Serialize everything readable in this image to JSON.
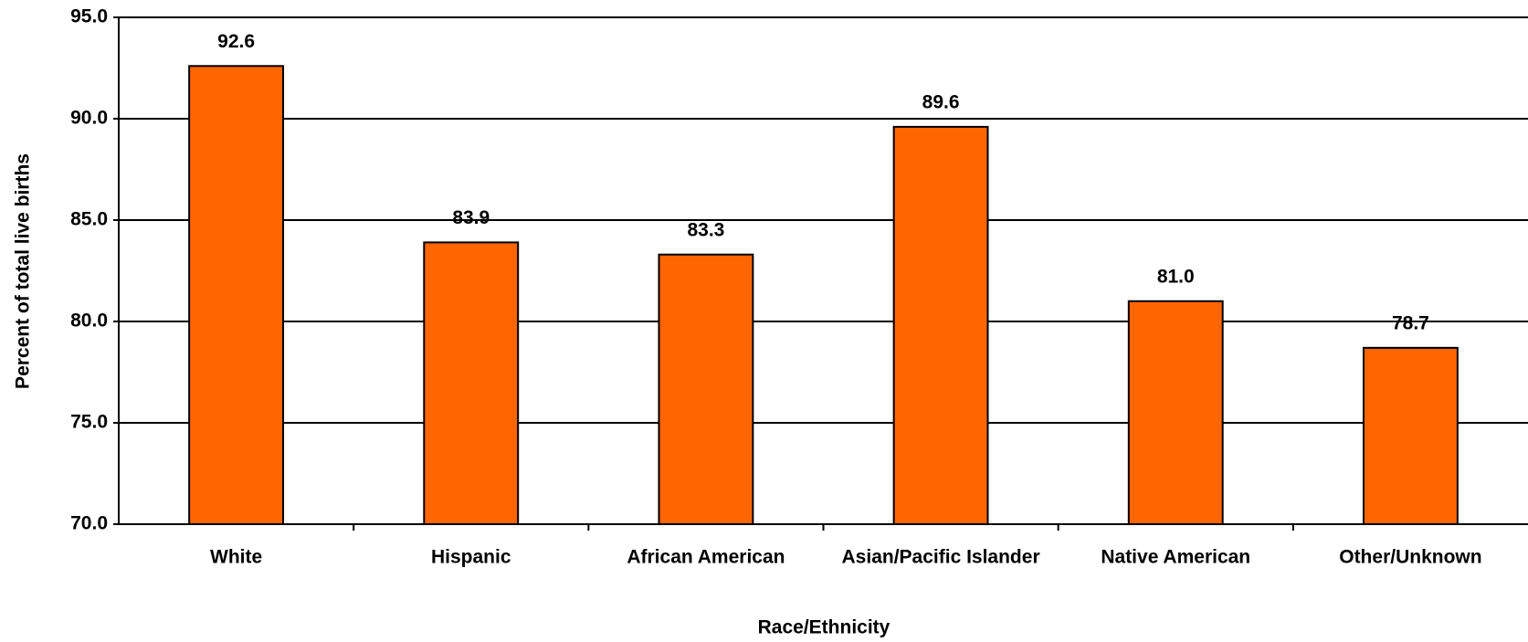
{
  "chart_data": {
    "type": "bar",
    "x_label": "Race/Ethnicity",
    "y_label": "Percent of total live births",
    "categories": [
      "White",
      "Hispanic",
      "African American",
      "Asian/Pacific Islander",
      "Native American",
      "Other/Unknown"
    ],
    "values": [
      92.6,
      83.9,
      83.3,
      89.6,
      81.0,
      78.7
    ],
    "value_labels": [
      "92.6",
      "83.9",
      "83.3",
      "89.6",
      "81.0",
      "78.7"
    ],
    "color": "#ff6600",
    "ylim": [
      70,
      95
    ],
    "yticks": [
      {
        "value": 70,
        "label": "70.0"
      },
      {
        "value": 75,
        "label": "75.0"
      },
      {
        "value": 80,
        "label": "80.0"
      },
      {
        "value": 85,
        "label": "85.0"
      },
      {
        "value": 90,
        "label": "90.0"
      },
      {
        "value": 95,
        "label": "95.0"
      }
    ],
    "grid": true
  }
}
